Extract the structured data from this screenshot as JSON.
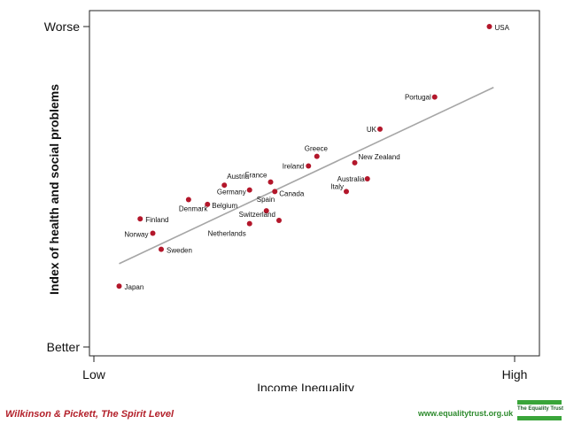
{
  "chart_data": {
    "type": "scatter",
    "xlabel": "Income Inequality",
    "ylabel": "Index of health and social problems",
    "x_tick_labels": [
      "Low",
      "High"
    ],
    "y_tick_labels": [
      "Better",
      "Worse"
    ],
    "xlim": [
      0,
      100
    ],
    "ylim": [
      0,
      100
    ],
    "grid": false,
    "trendline": {
      "x": [
        6,
        95
      ],
      "y": [
        26,
        81
      ]
    },
    "point_color": "#b3172b",
    "points": [
      {
        "label": "USA",
        "x": 94,
        "y": 100
      },
      {
        "label": "Portugal",
        "x": 81,
        "y": 78
      },
      {
        "label": "UK",
        "x": 68,
        "y": 68
      },
      {
        "label": "Greece",
        "x": 53,
        "y": 59.5
      },
      {
        "label": "Ireland",
        "x": 51,
        "y": 56.5
      },
      {
        "label": "New Zealand",
        "x": 62,
        "y": 57.5
      },
      {
        "label": "Australia",
        "x": 65,
        "y": 52.5
      },
      {
        "label": "Italy",
        "x": 60,
        "y": 48.5
      },
      {
        "label": "Austria",
        "x": 31,
        "y": 50.5
      },
      {
        "label": "France",
        "x": 42,
        "y": 51.5
      },
      {
        "label": "Germany",
        "x": 37,
        "y": 49
      },
      {
        "label": "Canada",
        "x": 43,
        "y": 48.5
      },
      {
        "label": "Belgium",
        "x": 27,
        "y": 44.5
      },
      {
        "label": "Denmark",
        "x": 22.5,
        "y": 46
      },
      {
        "label": "Spain",
        "x": 41,
        "y": 42.5
      },
      {
        "label": "Switzerland",
        "x": 44,
        "y": 39.5
      },
      {
        "label": "Netherlands",
        "x": 37,
        "y": 38.5
      },
      {
        "label": "Finland",
        "x": 11,
        "y": 40
      },
      {
        "label": "Norway",
        "x": 14,
        "y": 35.5
      },
      {
        "label": "Sweden",
        "x": 16,
        "y": 30.5
      },
      {
        "label": "Japan",
        "x": 6,
        "y": 19
      }
    ]
  },
  "footer": {
    "credit": "Wilkinson & Pickett, The Spirit Level",
    "url": "www.equalitytrust.org.uk",
    "logo_text": "The Equality Trust"
  },
  "colors": {
    "credit": "#b3202a",
    "url": "#2e8b2e",
    "logo": "#3aa53a",
    "trendline": "#a6a6a6"
  }
}
